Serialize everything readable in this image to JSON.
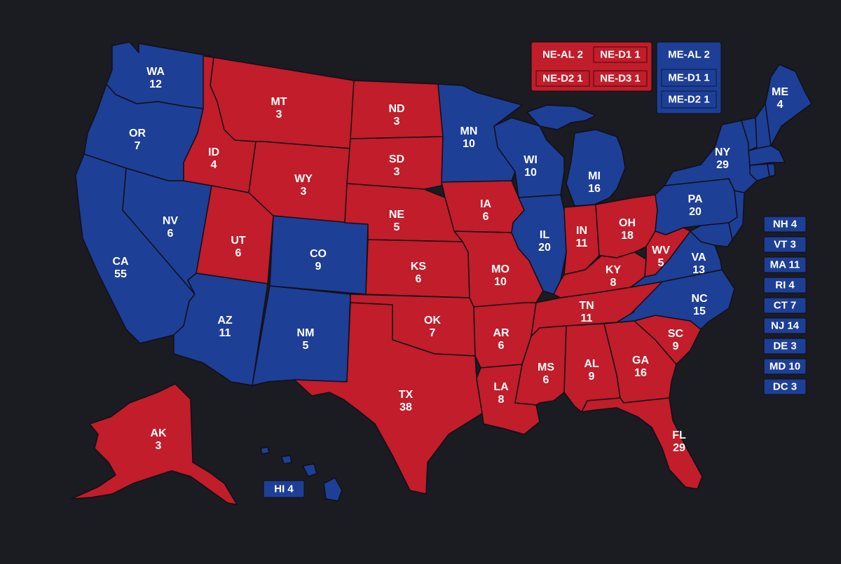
{
  "colors": {
    "background": "#1b1b22",
    "republican": "#c11d2a",
    "democrat": "#1e3f96"
  },
  "states": {
    "WA": {
      "abbr": "WA",
      "ev": "12",
      "party": "D"
    },
    "OR": {
      "abbr": "OR",
      "ev": "7",
      "party": "D"
    },
    "CA": {
      "abbr": "CA",
      "ev": "55",
      "party": "D"
    },
    "NV": {
      "abbr": "NV",
      "ev": "6",
      "party": "D"
    },
    "ID": {
      "abbr": "ID",
      "ev": "4",
      "party": "R"
    },
    "MT": {
      "abbr": "MT",
      "ev": "3",
      "party": "R"
    },
    "WY": {
      "abbr": "WY",
      "ev": "3",
      "party": "R"
    },
    "UT": {
      "abbr": "UT",
      "ev": "6",
      "party": "R"
    },
    "CO": {
      "abbr": "CO",
      "ev": "9",
      "party": "D"
    },
    "AZ": {
      "abbr": "AZ",
      "ev": "11",
      "party": "D"
    },
    "NM": {
      "abbr": "NM",
      "ev": "5",
      "party": "D"
    },
    "ND": {
      "abbr": "ND",
      "ev": "3",
      "party": "R"
    },
    "SD": {
      "abbr": "SD",
      "ev": "3",
      "party": "R"
    },
    "NE": {
      "abbr": "NE",
      "ev": "5",
      "party": "R"
    },
    "KS": {
      "abbr": "KS",
      "ev": "6",
      "party": "R"
    },
    "OK": {
      "abbr": "OK",
      "ev": "7",
      "party": "R"
    },
    "TX": {
      "abbr": "TX",
      "ev": "38",
      "party": "R"
    },
    "MN": {
      "abbr": "MN",
      "ev": "10",
      "party": "D"
    },
    "IA": {
      "abbr": "IA",
      "ev": "6",
      "party": "R"
    },
    "MO": {
      "abbr": "MO",
      "ev": "10",
      "party": "R"
    },
    "AR": {
      "abbr": "AR",
      "ev": "6",
      "party": "R"
    },
    "LA": {
      "abbr": "LA",
      "ev": "8",
      "party": "R"
    },
    "WI": {
      "abbr": "WI",
      "ev": "10",
      "party": "D"
    },
    "IL": {
      "abbr": "IL",
      "ev": "20",
      "party": "D"
    },
    "MI": {
      "abbr": "MI",
      "ev": "16",
      "party": "D"
    },
    "IN": {
      "abbr": "IN",
      "ev": "11",
      "party": "R"
    },
    "OH": {
      "abbr": "OH",
      "ev": "18",
      "party": "R"
    },
    "KY": {
      "abbr": "KY",
      "ev": "8",
      "party": "R"
    },
    "TN": {
      "abbr": "TN",
      "ev": "11",
      "party": "R"
    },
    "MS": {
      "abbr": "MS",
      "ev": "6",
      "party": "R"
    },
    "AL": {
      "abbr": "AL",
      "ev": "9",
      "party": "R"
    },
    "GA": {
      "abbr": "GA",
      "ev": "16",
      "party": "R"
    },
    "FL": {
      "abbr": "FL",
      "ev": "29",
      "party": "R"
    },
    "SC": {
      "abbr": "SC",
      "ev": "9",
      "party": "R"
    },
    "NC": {
      "abbr": "NC",
      "ev": "15",
      "party": "D"
    },
    "VA": {
      "abbr": "VA",
      "ev": "13",
      "party": "D"
    },
    "WV": {
      "abbr": "WV",
      "ev": "5",
      "party": "R"
    },
    "PA": {
      "abbr": "PA",
      "ev": "20",
      "party": "D"
    },
    "NY": {
      "abbr": "NY",
      "ev": "29",
      "party": "D"
    },
    "ME": {
      "abbr": "ME",
      "ev": "4",
      "party": "D"
    },
    "AK": {
      "abbr": "AK",
      "ev": "3",
      "party": "R"
    }
  },
  "hawaii_label": "HI 4",
  "nebraska_districts": [
    "NE-AL 2",
    "NE-D1 1",
    "NE-D2 1",
    "NE-D3 1"
  ],
  "maine_districts": [
    "ME-AL 2",
    "ME-D1 1",
    "ME-D2 1"
  ],
  "small_states": [
    "NH 4",
    "VT 3",
    "MA 11",
    "RI 4",
    "CT 7",
    "NJ 14",
    "DE 3",
    "MD 10",
    "DC 3"
  ]
}
